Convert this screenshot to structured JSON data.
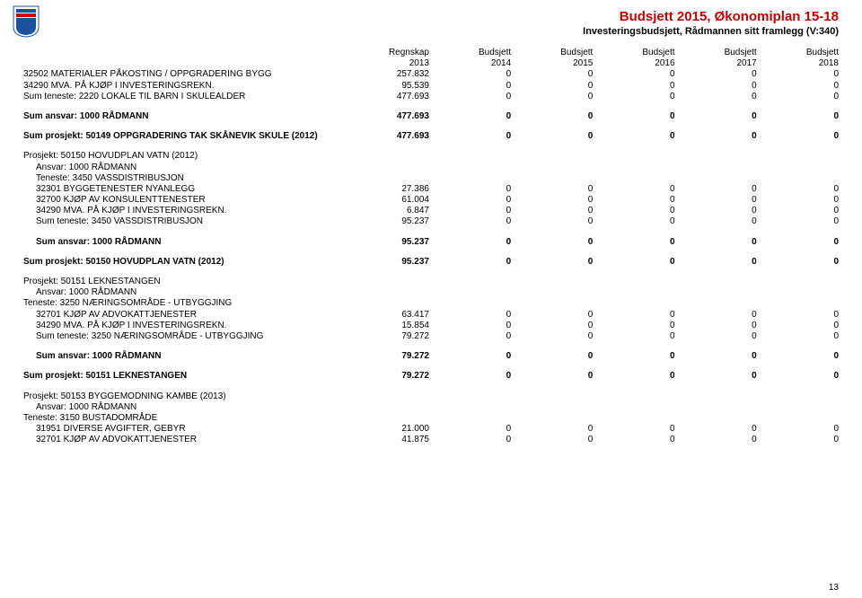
{
  "colors": {
    "title": "#c00000",
    "text": "#000000",
    "bg": "#ffffff"
  },
  "header": {
    "title": "Budsjett 2015, Økonomiplan 15-18",
    "subtitle": "Investeringsbudsjett, Rådmannen sitt framlegg (V:340)"
  },
  "columns": {
    "blank": "",
    "c1a": "Regnskap",
    "c1b": "2013",
    "c2a": "Budsjett",
    "c2b": "2014",
    "c3a": "Budsjett",
    "c3b": "2015",
    "c4a": "Budsjett",
    "c4b": "2016",
    "c5a": "Budsjett",
    "c5b": "2017",
    "c6a": "Budsjett",
    "c6b": "2018"
  },
  "rows": [
    {
      "b": false,
      "i": 0,
      "label": "32502 MATERIALER PÅKOSTING / OPPGRADERING BYGG",
      "v": [
        "257.832",
        "0",
        "0",
        "0",
        "0",
        "0"
      ]
    },
    {
      "b": false,
      "i": 0,
      "label": "34290 MVA. PÅ KJØP I INVESTERINGSREKN.",
      "v": [
        "95.539",
        "0",
        "0",
        "0",
        "0",
        "0"
      ]
    },
    {
      "b": false,
      "i": 0,
      "label": "Sum teneste: 2220 LOKALE TIL BARN I SKULEALDER",
      "v": [
        "477.693",
        "0",
        "0",
        "0",
        "0",
        "0"
      ]
    },
    {
      "spacer": true
    },
    {
      "b": true,
      "i": 0,
      "label": "Sum ansvar: 1000 RÅDMANN",
      "v": [
        "477.693",
        "0",
        "0",
        "0",
        "0",
        "0"
      ]
    },
    {
      "spacer": true
    },
    {
      "b": true,
      "i": 0,
      "label": "Sum prosjekt: 50149 OPPGRADERING TAK SKÅNEVIK SKULE (2012)",
      "v": [
        "477.693",
        "0",
        "0",
        "0",
        "0",
        "0"
      ]
    },
    {
      "spacer": true
    },
    {
      "b": false,
      "i": 0,
      "label": "Prosjekt: 50150 HOVUDPLAN VATN (2012)",
      "noval": true
    },
    {
      "b": false,
      "i": 1,
      "label": "Ansvar: 1000 RÅDMANN",
      "noval": true
    },
    {
      "b": false,
      "i": 1,
      "label": "Teneste: 3450 VASSDISTRIBUSJON",
      "noval": true
    },
    {
      "b": false,
      "i": 1,
      "label": "32301 BYGGETENESTER NYANLEGG",
      "v": [
        "27.386",
        "0",
        "0",
        "0",
        "0",
        "0"
      ]
    },
    {
      "b": false,
      "i": 1,
      "label": "32700 KJØP AV KONSULENTTENESTER",
      "v": [
        "61.004",
        "0",
        "0",
        "0",
        "0",
        "0"
      ]
    },
    {
      "b": false,
      "i": 1,
      "label": "34290 MVA. PÅ KJØP I INVESTERINGSREKN.",
      "v": [
        "6.847",
        "0",
        "0",
        "0",
        "0",
        "0"
      ]
    },
    {
      "b": false,
      "i": 1,
      "label": "Sum teneste: 3450 VASSDISTRIBUSJON",
      "v": [
        "95.237",
        "0",
        "0",
        "0",
        "0",
        "0"
      ]
    },
    {
      "spacer": true
    },
    {
      "b": true,
      "i": 1,
      "label": "Sum ansvar: 1000 RÅDMANN",
      "v": [
        "95.237",
        "0",
        "0",
        "0",
        "0",
        "0"
      ]
    },
    {
      "spacer": true
    },
    {
      "b": true,
      "i": 0,
      "label": "Sum prosjekt: 50150 HOVUDPLAN VATN (2012)",
      "v": [
        "95.237",
        "0",
        "0",
        "0",
        "0",
        "0"
      ]
    },
    {
      "spacer": true
    },
    {
      "b": false,
      "i": 0,
      "label": "Prosjekt: 50151 LEKNESTANGEN",
      "noval": true
    },
    {
      "b": false,
      "i": 1,
      "label": "Ansvar: 1000 RÅDMANN",
      "noval": true
    },
    {
      "b": false,
      "i": 0,
      "label": "Teneste: 3250 NÆRINGSOMRÅDE - UTBYGGJING",
      "noval": true
    },
    {
      "b": false,
      "i": 1,
      "label": "32701 KJØP AV ADVOKATTJENESTER",
      "v": [
        "63.417",
        "0",
        "0",
        "0",
        "0",
        "0"
      ]
    },
    {
      "b": false,
      "i": 1,
      "label": "34290 MVA. PÅ KJØP I INVESTERINGSREKN.",
      "v": [
        "15.854",
        "0",
        "0",
        "0",
        "0",
        "0"
      ]
    },
    {
      "b": false,
      "i": 1,
      "label": "Sum teneste: 3250 NÆRINGSOMRÅDE - UTBYGGJING",
      "v": [
        "79.272",
        "0",
        "0",
        "0",
        "0",
        "0"
      ]
    },
    {
      "spacer": true
    },
    {
      "b": true,
      "i": 1,
      "label": "Sum ansvar: 1000 RÅDMANN",
      "v": [
        "79.272",
        "0",
        "0",
        "0",
        "0",
        "0"
      ]
    },
    {
      "spacer": true
    },
    {
      "b": true,
      "i": 0,
      "label": "Sum prosjekt: 50151 LEKNESTANGEN",
      "v": [
        "79.272",
        "0",
        "0",
        "0",
        "0",
        "0"
      ]
    },
    {
      "spacer": true
    },
    {
      "b": false,
      "i": 0,
      "label": "Prosjekt: 50153 BYGGEMODNING KAMBE (2013)",
      "noval": true
    },
    {
      "b": false,
      "i": 1,
      "label": "Ansvar: 1000 RÅDMANN",
      "noval": true
    },
    {
      "b": false,
      "i": 0,
      "label": "Teneste: 3150 BUSTADOMRÅDE",
      "noval": true
    },
    {
      "b": false,
      "i": 1,
      "label": "31951 DIVERSE AVGIFTER, GEBYR",
      "v": [
        "21.000",
        "0",
        "0",
        "0",
        "0",
        "0"
      ]
    },
    {
      "b": false,
      "i": 1,
      "label": "32701 KJØP AV ADVOKATTJENESTER",
      "v": [
        "41.875",
        "0",
        "0",
        "0",
        "0",
        "0"
      ]
    }
  ],
  "pagenum": "13"
}
